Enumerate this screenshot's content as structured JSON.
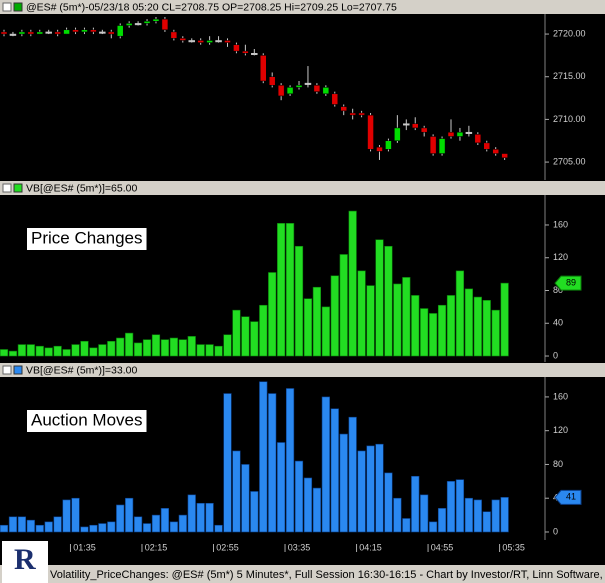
{
  "status_bar": "Volatility_PriceChanges: @ES# (5m*) 5 Minutes*, Full Session 16:30-16:15 - Chart by Investor/RT, Linn Software, I",
  "chart_data": [
    {
      "type": "candlestick",
      "title": "@ES# (5m*)-05/23/18 05:20 CL=2708.75 OP=2708.25 Hi=2709.25 Lo=2707.75",
      "up_color": "#00dd00",
      "down_color": "#e00000",
      "flat_color": "#c8c8c8",
      "open": [
        2720.25,
        2720.0,
        2720.0,
        2720.25,
        2720.0,
        2720.25,
        2720.25,
        2720.0,
        2720.5,
        2720.25,
        2720.5,
        2720.25,
        2720.25,
        2719.75,
        2721.0,
        2721.25,
        2721.25,
        2721.5,
        2721.75,
        2720.25,
        2719.5,
        2719.25,
        2719.25,
        2719.0,
        2719.25,
        2719.25,
        2718.75,
        2718.0,
        2717.75,
        2717.5,
        2715.0,
        2714.0,
        2713.0,
        2713.75,
        2714.25,
        2714.0,
        2713.0,
        2713.0,
        2711.5,
        2710.75,
        2710.75,
        2710.5,
        2706.75,
        2706.5,
        2707.5,
        2709.5,
        2709.5,
        2709.0,
        2708.0,
        2706.0,
        2708.5,
        2708.0,
        2708.5,
        2708.25,
        2707.25,
        2706.5,
        2706.0,
        null
      ],
      "high": [
        2720.5,
        2720.25,
        2720.5,
        2720.5,
        2720.5,
        2720.5,
        2720.5,
        2720.75,
        2720.75,
        2720.75,
        2720.75,
        2720.5,
        2720.5,
        2721.25,
        2721.5,
        2721.5,
        2721.75,
        2722.0,
        2722.0,
        2720.5,
        2719.75,
        2719.5,
        2719.5,
        2719.75,
        2719.75,
        2719.5,
        2719.0,
        2718.75,
        2718.25,
        2717.75,
        2715.5,
        2714.25,
        2714.0,
        2714.5,
        2716.25,
        2714.25,
        2714.0,
        2713.25,
        2711.75,
        2711.25,
        2711.0,
        2710.75,
        2707.0,
        2707.75,
        2710.5,
        2710.0,
        2710.25,
        2709.25,
        2708.25,
        2708.0,
        2710.0,
        2709.0,
        2709.25,
        2708.5,
        2707.5,
        2706.75,
        2706.0,
        null
      ],
      "low": [
        2719.75,
        2719.75,
        2719.75,
        2719.75,
        2720.0,
        2720.0,
        2719.75,
        2720.0,
        2720.0,
        2720.0,
        2720.0,
        2720.0,
        2719.5,
        2719.5,
        2720.75,
        2721.0,
        2721.0,
        2721.25,
        2720.25,
        2719.25,
        2719.0,
        2719.0,
        2718.75,
        2718.75,
        2719.0,
        2718.5,
        2717.75,
        2717.5,
        2717.5,
        2714.25,
        2713.75,
        2712.25,
        2712.75,
        2713.5,
        2713.75,
        2713.0,
        2712.75,
        2711.5,
        2710.5,
        2710.0,
        2710.25,
        2706.25,
        2705.25,
        2706.25,
        2707.25,
        2708.75,
        2708.75,
        2708.0,
        2705.75,
        2705.75,
        2707.75,
        2707.5,
        2708.0,
        2707.0,
        2706.25,
        2705.75,
        2705.25,
        null
      ],
      "close": [
        2720.0,
        2720.0,
        2720.25,
        2720.0,
        2720.25,
        2720.25,
        2720.0,
        2720.5,
        2720.25,
        2720.5,
        2720.25,
        2720.25,
        2720.0,
        2721.0,
        2721.25,
        2721.25,
        2721.5,
        2721.75,
        2720.5,
        2719.5,
        2719.25,
        2719.25,
        2719.0,
        2719.25,
        2719.25,
        2719.0,
        2718.0,
        2717.75,
        2717.75,
        2714.5,
        2714.0,
        2712.75,
        2713.75,
        2714.0,
        2714.25,
        2713.25,
        2713.75,
        2711.75,
        2711.0,
        2710.5,
        2710.5,
        2706.5,
        2706.25,
        2707.5,
        2709.0,
        2709.5,
        2709.0,
        2708.5,
        2706.0,
        2707.75,
        2708.0,
        2708.5,
        2708.5,
        2707.25,
        2706.5,
        2706.0,
        2705.5,
        null
      ],
      "ylim": [
        2702.9,
        2722.35
      ],
      "yticks": [
        {
          "value": 2705,
          "label": "2705.00"
        },
        {
          "value": 2710,
          "label": "2710.00"
        },
        {
          "value": 2715,
          "label": "2715.00"
        },
        {
          "value": 2720,
          "label": "2720.00"
        }
      ]
    },
    {
      "type": "bar",
      "title": "VB[@ES# (5m*)]=65.00",
      "annotation": "Price Changes",
      "color": "#22dd22",
      "edge": "#0a7a0a",
      "values": [
        8,
        6,
        14,
        14,
        12,
        10,
        12,
        8,
        14,
        18,
        10,
        14,
        18,
        22,
        28,
        16,
        20,
        26,
        20,
        22,
        20,
        24,
        14,
        14,
        12,
        26,
        56,
        48,
        42,
        62,
        102,
        162,
        162,
        134,
        70,
        84,
        60,
        98,
        124,
        177,
        104,
        86,
        142,
        134,
        88,
        96,
        74,
        58,
        52,
        62,
        74,
        104,
        82,
        72,
        68,
        56,
        89,
        null
      ],
      "ylim": [
        -7.3,
        196.6
      ],
      "yticks": [
        0,
        40,
        80,
        120,
        160
      ]
    },
    {
      "type": "bar",
      "title": "VB[@ES# (5m*)]=33.00",
      "annotation": "Auction Moves",
      "color": "#2a88f0",
      "edge": "#0b3f8a",
      "categories": [
        null,
        null,
        null,
        null,
        null,
        null,
        null,
        null,
        null,
        "01:35",
        null,
        null,
        null,
        null,
        null,
        null,
        null,
        "02:15",
        null,
        null,
        null,
        null,
        null,
        null,
        null,
        "02:55",
        null,
        null,
        null,
        null,
        null,
        null,
        null,
        "03:35",
        null,
        null,
        null,
        null,
        null,
        null,
        null,
        "04:15",
        null,
        null,
        null,
        null,
        null,
        null,
        null,
        "04:55",
        null,
        null,
        null,
        null,
        null,
        null,
        null,
        "05:35"
      ],
      "values": [
        8,
        18,
        18,
        14,
        8,
        12,
        18,
        38,
        40,
        6,
        8,
        10,
        12,
        32,
        40,
        18,
        10,
        20,
        28,
        12,
        20,
        44,
        34,
        34,
        8,
        164,
        96,
        80,
        48,
        178,
        164,
        106,
        170,
        84,
        64,
        52,
        160,
        146,
        116,
        136,
        96,
        102,
        104,
        70,
        40,
        16,
        66,
        44,
        12,
        28,
        60,
        62,
        40,
        38,
        24,
        38,
        41,
        null
      ],
      "ylim": [
        -9.5,
        183.6
      ],
      "yticks": [
        0,
        40,
        80,
        120,
        160
      ]
    }
  ]
}
